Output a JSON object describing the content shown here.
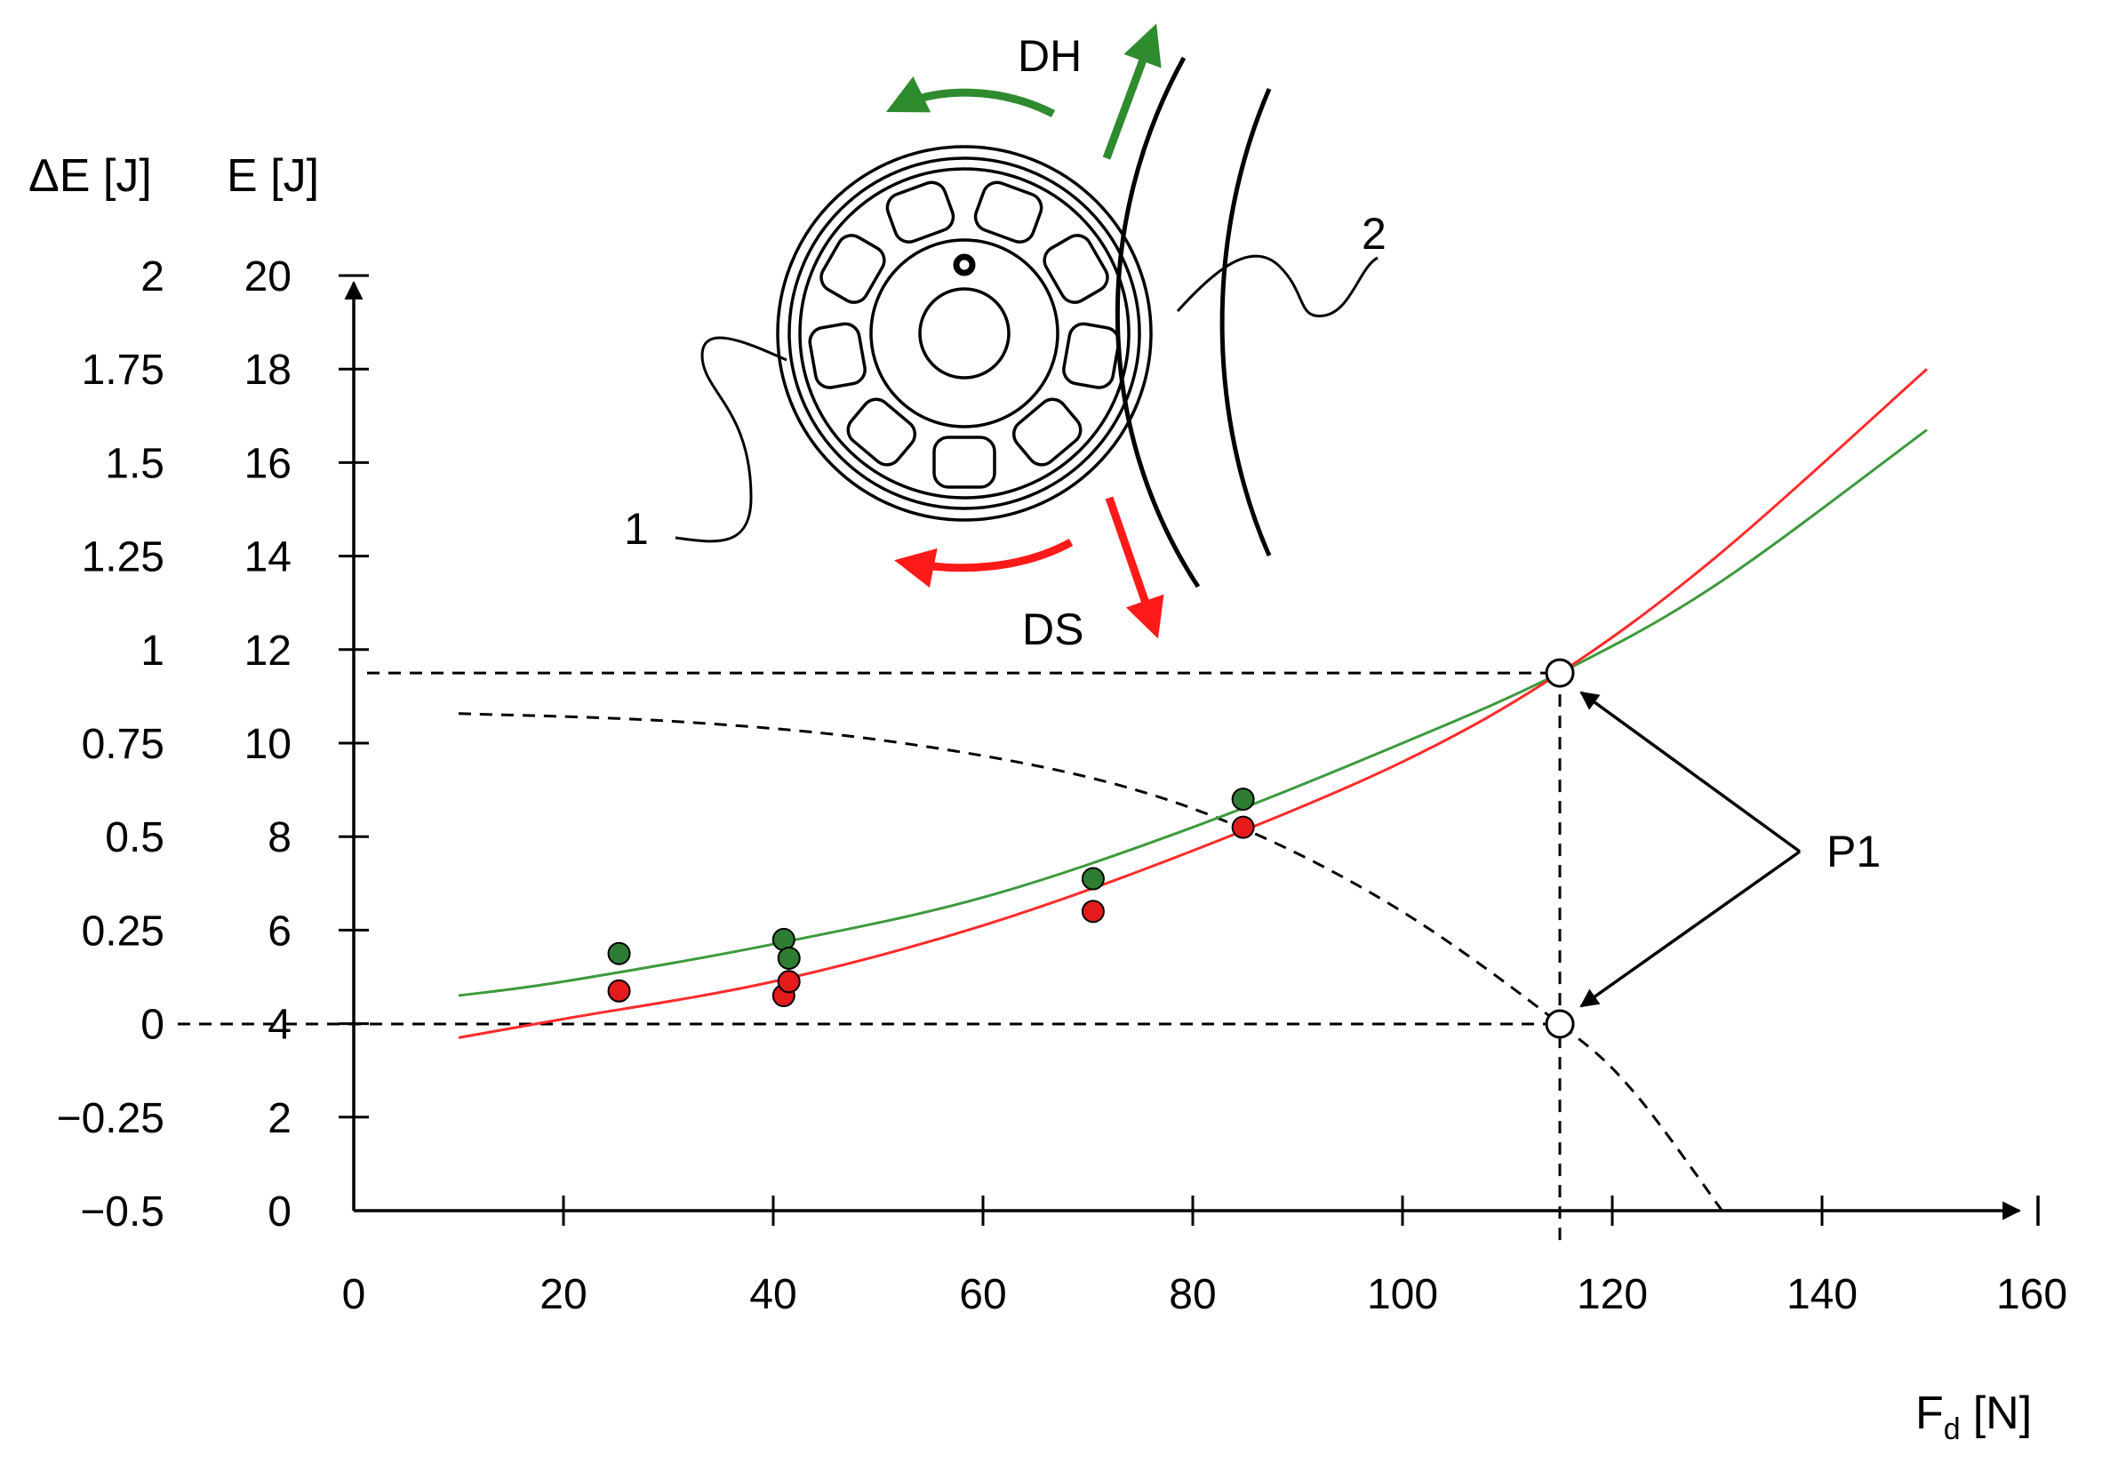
{
  "chart_data": {
    "type": "scatter",
    "x_axis": {
      "label": "F",
      "label_subscript": "d",
      "label_unit": "[N]",
      "range": [
        0,
        160
      ],
      "ticks": [
        "0",
        "20",
        "40",
        "60",
        "80",
        "100",
        "120",
        "140",
        "160"
      ]
    },
    "y_axis_left": {
      "label": "ΔE [J]",
      "range": [
        -0.5,
        2
      ],
      "ticks": [
        "−0.5",
        "−0.25",
        "0",
        "0.25",
        "0.5",
        "0.75",
        "1",
        "1.25",
        "1.5",
        "1.75",
        "2"
      ]
    },
    "y_axis_right": {
      "label": "E [J]",
      "range": [
        0,
        20
      ],
      "ticks": [
        "0",
        "2",
        "4",
        "6",
        "8",
        "10",
        "12",
        "14",
        "16",
        "18",
        "20"
      ]
    },
    "series": [
      {
        "color": "#2e7d32",
        "points": [
          [
            25.3,
            5.5
          ],
          [
            41.0,
            5.8
          ],
          [
            41.5,
            5.4
          ],
          [
            70.5,
            7.1
          ],
          [
            84.8,
            8.8
          ]
        ],
        "curve": [
          [
            10,
            4.6
          ],
          [
            20,
            4.9
          ],
          [
            40,
            5.7
          ],
          [
            60,
            6.7
          ],
          [
            80,
            8.2
          ],
          [
            100,
            10.0
          ],
          [
            115,
            11.5
          ],
          [
            130,
            13.4
          ],
          [
            150,
            16.7
          ]
        ]
      },
      {
        "color": "#e41a1c",
        "points": [
          [
            25.3,
            4.7
          ],
          [
            41.0,
            4.6
          ],
          [
            41.5,
            4.9
          ],
          [
            70.5,
            6.4
          ],
          [
            84.8,
            8.2
          ]
        ],
        "curve": [
          [
            10,
            3.7
          ],
          [
            20,
            4.1
          ],
          [
            40,
            4.9
          ],
          [
            60,
            6.1
          ],
          [
            80,
            7.7
          ],
          [
            100,
            9.6
          ],
          [
            115,
            11.5
          ],
          [
            130,
            14.0
          ],
          [
            150,
            18.0
          ]
        ]
      }
    ],
    "delta_curve": {
      "style": "dashed",
      "points": [
        [
          10,
          0.83
        ],
        [
          30,
          0.81
        ],
        [
          50,
          0.76
        ],
        [
          70,
          0.66
        ],
        [
          85,
          0.52
        ],
        [
          100,
          0.3
        ],
        [
          115,
          0.0
        ],
        [
          122,
          -0.18
        ],
        [
          130.5,
          -0.5
        ]
      ]
    },
    "intersection_points": [
      {
        "x": 115,
        "y_right": 11.5
      },
      {
        "x": 115,
        "y_left": 0
      }
    ],
    "annotations": {
      "p1": "P1",
      "dh": "DH",
      "ds": "DS",
      "label_1": "1",
      "label_2": "2"
    },
    "grid": false,
    "legend": "none"
  }
}
